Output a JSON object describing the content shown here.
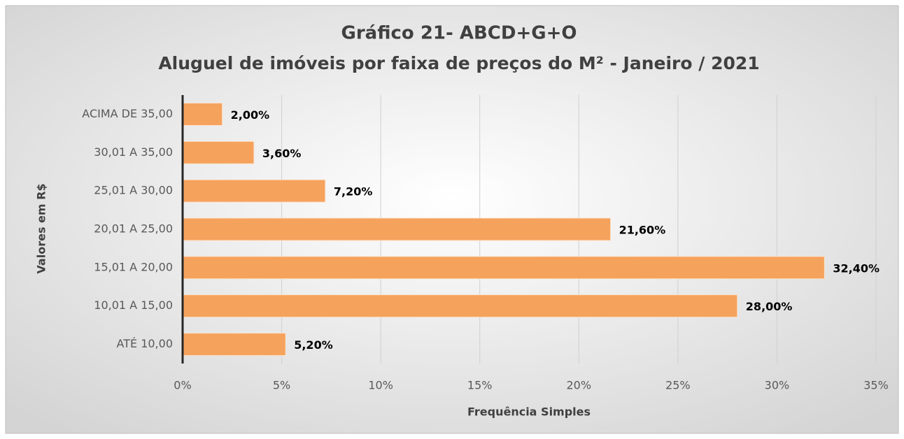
{
  "chart_data": {
    "type": "barh",
    "title": "Gráfico 21- ABCD+G+O",
    "subtitle": "Aluguel de imóveis por faixa de preços do M² - Janeiro / 2021",
    "y_label": "Valores em R$",
    "x_label": "Frequência Simples",
    "categories": [
      "ACIMA DE 35,00",
      "30,01 A 35,00",
      "25,01 A 30,00",
      "20,01 A 25,00",
      "15,01 A 20,00",
      "10,01 A 15,00",
      "ATÉ 10,00"
    ],
    "values": [
      2.0,
      3.6,
      7.2,
      21.6,
      32.4,
      28.0,
      5.2
    ],
    "value_labels": [
      "2,00%",
      "3,60%",
      "7,20%",
      "21,60%",
      "32,40%",
      "28,00%",
      "5,20%"
    ],
    "color": "#f5a25d",
    "xlim": [
      0,
      35
    ],
    "xticks": [
      {
        "value": 0,
        "label": "0%"
      },
      {
        "value": 5,
        "label": "5%"
      },
      {
        "value": 10,
        "label": "10%"
      },
      {
        "value": 15,
        "label": "15%"
      },
      {
        "value": 20,
        "label": "20%"
      },
      {
        "value": 25,
        "label": "25%"
      },
      {
        "value": 30,
        "label": "30%"
      },
      {
        "value": 35,
        "label": "35%"
      }
    ],
    "grid": true
  }
}
